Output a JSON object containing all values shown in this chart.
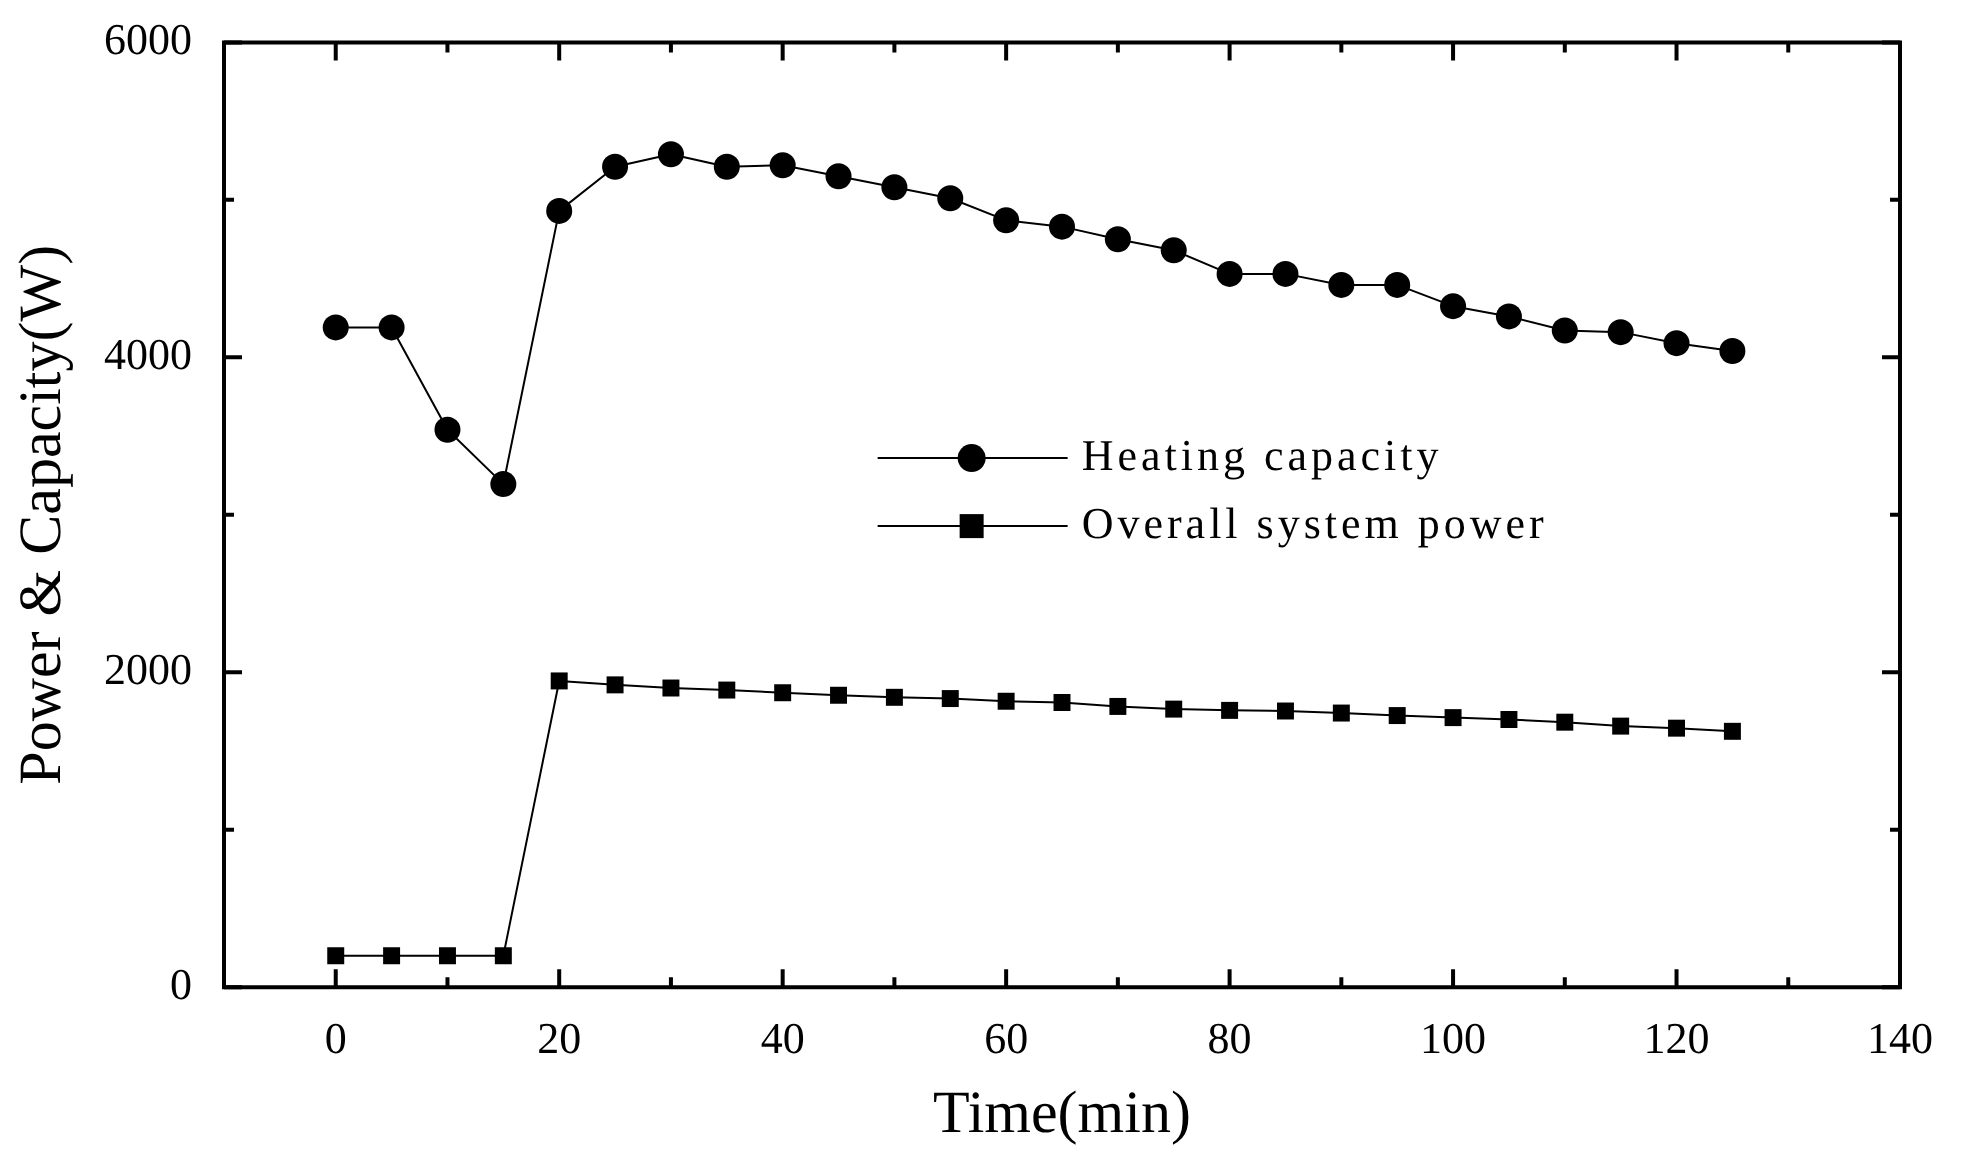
{
  "chart_data": {
    "type": "line",
    "xlabel": "Time(min)",
    "ylabel": "Power & Capacity(W)",
    "x": [
      0,
      5,
      10,
      15,
      20,
      25,
      30,
      35,
      40,
      45,
      50,
      55,
      60,
      65,
      70,
      75,
      80,
      85,
      90,
      95,
      100,
      105,
      110,
      115,
      120,
      125
    ],
    "series": [
      {
        "name": "Heating capacity",
        "color": "#000000",
        "marker": "circle",
        "values": [
          4190,
          4190,
          3540,
          3195,
          4930,
          5210,
          5290,
          5210,
          5220,
          5150,
          5080,
          5010,
          4870,
          4830,
          4750,
          4680,
          4530,
          4530,
          4460,
          4460,
          4325,
          4260,
          4170,
          4160,
          4090,
          4040
        ]
      },
      {
        "name": "Overall system power",
        "color": "#000000",
        "marker": "square",
        "values": [
          200,
          200,
          200,
          200,
          1945,
          1920,
          1900,
          1887,
          1870,
          1854,
          1841,
          1833,
          1816,
          1808,
          1783,
          1766,
          1758,
          1754,
          1741,
          1725,
          1712,
          1700,
          1683,
          1658,
          1645,
          1625
        ]
      }
    ],
    "xlim": [
      -10,
      140
    ],
    "xticks": [
      0,
      {
        "value": 10,
        "label": null
      },
      20,
      {
        "value": 30,
        "label": null
      },
      40,
      {
        "value": 50,
        "label": null
      },
      60,
      {
        "value": 70,
        "label": null
      },
      80,
      {
        "value": 90,
        "label": null
      },
      100,
      {
        "value": 110,
        "label": null
      },
      120,
      {
        "value": 130,
        "label": null
      },
      140
    ],
    "ylim": [
      0,
      6000
    ],
    "yticks": [
      0,
      {
        "value": 1000,
        "label": null
      },
      2000,
      {
        "value": 3000,
        "label": null
      },
      4000,
      {
        "value": 5000,
        "label": null
      },
      6000
    ],
    "grid": false,
    "legend": "center",
    "line_style": "solid"
  }
}
